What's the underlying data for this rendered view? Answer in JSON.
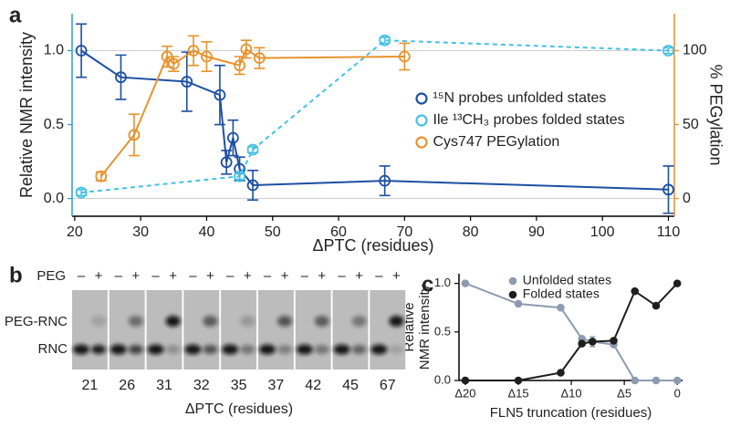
{
  "chart_data": [
    {
      "panel": "a",
      "type": "line",
      "xlabel": "ΔPTC (residues)",
      "ylabel": "Relative NMR intensity",
      "y2label": "% PEGylation",
      "xlim": [
        19.6,
        110.9
      ],
      "xticks": [
        20,
        30,
        40,
        50,
        60,
        70,
        80,
        90,
        100,
        110
      ],
      "ylim": [
        -0.12,
        1.25
      ],
      "yticks": [
        {
          "value": 0,
          "label": "0.0"
        },
        {
          "value": 0.5,
          "label": "0.5"
        },
        {
          "value": 1,
          "label": "1.0"
        }
      ],
      "y2lim": [
        -12,
        125
      ],
      "y2ticks": [
        0,
        50,
        100
      ],
      "hlines": [
        0,
        1
      ],
      "marker": "open",
      "legend": "right",
      "ycolor": "#2b9bd3",
      "y2color": "#e8922e",
      "series": [
        {
          "name": "¹⁵N probes unfolded states",
          "color": "#1d4fa3",
          "dashed": false,
          "x": [
            21,
            27,
            37,
            42,
            43,
            44,
            45,
            47,
            67,
            110
          ],
          "values": [
            1.0,
            0.82,
            0.79,
            0.7,
            0.245,
            0.41,
            0.2,
            0.09,
            0.12,
            0.06
          ],
          "errors": [
            0.18,
            0.15,
            0.2,
            0.2,
            0.08,
            0.12,
            0.08,
            0.1,
            0.1,
            0.16
          ]
        },
        {
          "name": "Ile ¹³CH₃ probes folded states",
          "color": "#47c1e3",
          "dashed": true,
          "x": [
            21,
            45,
            47,
            67,
            110
          ],
          "values": [
            0.04,
            0.15,
            0.33,
            1.07,
            1.0
          ],
          "errors": [
            0.02,
            0.02,
            0.02,
            0.02,
            0.02
          ]
        },
        {
          "name": "Cys747 PEGylation",
          "color": "#e8922e",
          "dashed": false,
          "axis": "y2",
          "x": [
            24,
            29,
            34,
            35,
            38,
            40,
            45,
            46,
            48,
            70
          ],
          "values": [
            15,
            43,
            96,
            91,
            100,
            96,
            90,
            101,
            95,
            96
          ],
          "errors": [
            3,
            14,
            7,
            5,
            10,
            10,
            6,
            6,
            7,
            9
          ]
        }
      ]
    },
    {
      "panel": "c",
      "type": "line",
      "xlabel": "FLN5 truncation (residues)",
      "ylabel": [
        "Relative",
        "NMR intensity"
      ],
      "xlim": [
        20.6,
        -0.5
      ],
      "xticks": [
        {
          "value": 20,
          "label": "Δ20"
        },
        {
          "value": 15,
          "label": "Δ15"
        },
        {
          "value": 10,
          "label": "Δ10"
        },
        {
          "value": 5,
          "label": "Δ5"
        },
        0
      ],
      "ylim": [
        0,
        1.1
      ],
      "yticks": [
        {
          "value": 0,
          "label": "0.0"
        },
        {
          "value": 0.5,
          "label": "0.5"
        },
        {
          "value": 1,
          "label": "1.0"
        }
      ],
      "marker": "filled",
      "legend": "top-right",
      "ycolor": "#000000",
      "series": [
        {
          "name": "Unfolded states",
          "color": "#8d9bb0",
          "dashed": false,
          "x": [
            20,
            15,
            11,
            9,
            8,
            6,
            4,
            2,
            0
          ],
          "values": [
            1.0,
            0.79,
            0.75,
            0.43,
            0.4,
            0.37,
            0,
            0,
            0
          ],
          "errors": [
            null,
            null,
            null,
            null,
            0.05,
            null,
            null,
            null,
            null
          ]
        },
        {
          "name": "Folded states",
          "color": "#1e1e1e",
          "dashed": false,
          "x": [
            20,
            15,
            11,
            9,
            8,
            6,
            4,
            2,
            0
          ],
          "values": [
            0,
            0,
            0.08,
            0.38,
            0.4,
            0.41,
            0.92,
            0.77,
            1.0
          ],
          "errors": [
            null,
            null,
            null,
            null,
            null,
            null,
            null,
            null,
            null
          ]
        }
      ]
    }
  ],
  "gel": {
    "panel": "b",
    "peg_label": "PEG",
    "band_labels": [
      "PEG-RNC",
      "RNC"
    ],
    "xlabel": "ΔPTC (residues)",
    "lanes": [
      {
        "dptc": 21,
        "peg": [
          "–",
          "+"
        ]
      },
      {
        "dptc": 26,
        "peg": [
          "–",
          "+"
        ]
      },
      {
        "dptc": 31,
        "peg": [
          "–",
          "+"
        ]
      },
      {
        "dptc": 32,
        "peg": [
          "–",
          "+"
        ]
      },
      {
        "dptc": 35,
        "peg": [
          "–",
          "+"
        ]
      },
      {
        "dptc": 37,
        "peg": [
          "–",
          "+"
        ]
      },
      {
        "dptc": 42,
        "peg": [
          "–",
          "+"
        ]
      },
      {
        "dptc": 45,
        "peg": [
          "–",
          "+"
        ]
      },
      {
        "dptc": 67,
        "peg": [
          "–",
          "+"
        ]
      }
    ]
  }
}
